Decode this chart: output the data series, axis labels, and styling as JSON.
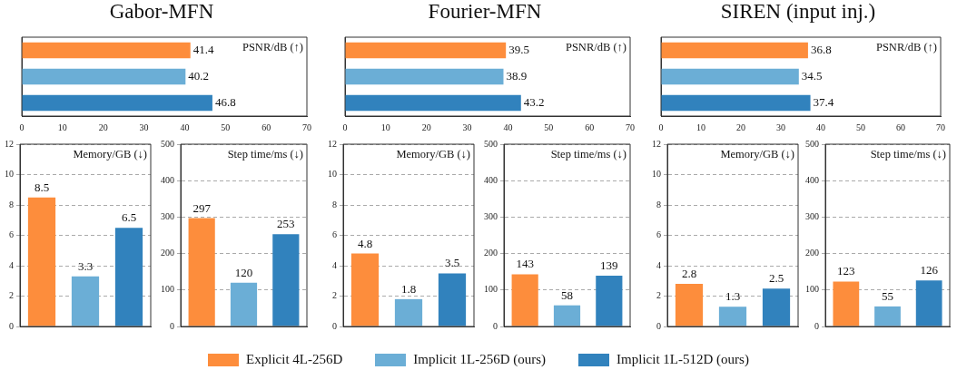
{
  "chart_data": [
    {
      "type": "bar",
      "title": "Gabor-MFN",
      "orientation": "horizontal",
      "categories": [
        null
      ],
      "series": [
        {
          "name": "Explicit 4L-256D",
          "color": "#fd8d3c",
          "values": [
            41.4
          ]
        },
        {
          "name": "Implicit 1L-256D (ours)",
          "color": "#6baed6",
          "values": [
            40.2
          ]
        },
        {
          "name": "Implicit 1L-512D (ours)",
          "color": "#3182bd",
          "values": [
            46.8
          ]
        }
      ],
      "xlim": [
        0,
        70
      ],
      "xticks": [
        0,
        10,
        20,
        30,
        40,
        50,
        60,
        70
      ],
      "annotations": [
        "PSNR/dB (↑)"
      ],
      "data_labels": true,
      "legend": "bottom"
    },
    {
      "type": "bar",
      "title": "Fourier-MFN",
      "orientation": "horizontal",
      "categories": [
        null
      ],
      "series": [
        {
          "color": "#fd8d3c",
          "values": [
            39.5
          ]
        },
        {
          "color": "#6baed6",
          "values": [
            38.9
          ]
        },
        {
          "color": "#3182bd",
          "values": [
            43.2
          ]
        }
      ],
      "xlim": [
        0,
        70
      ],
      "xticks": [
        0,
        10,
        20,
        30,
        40,
        50,
        60,
        70
      ],
      "annotations": [
        "PSNR/dB (↑)"
      ],
      "data_labels": true
    },
    {
      "type": "bar",
      "title": "SIREN (input inj.)",
      "orientation": "horizontal",
      "categories": [
        null
      ],
      "series": [
        {
          "color": "#fd8d3c",
          "values": [
            36.8
          ]
        },
        {
          "color": "#6baed6",
          "values": [
            34.5
          ]
        },
        {
          "color": "#3182bd",
          "values": [
            37.4
          ]
        }
      ],
      "xlim": [
        0,
        70
      ],
      "xticks": [
        0,
        10,
        20,
        30,
        40,
        50,
        60,
        70
      ],
      "annotations": [
        "PSNR/dB (↑)"
      ],
      "data_labels": true
    },
    {
      "type": "bar",
      "categories": [
        null
      ],
      "series": [
        {
          "color": "#fd8d3c",
          "values": [
            8.5
          ]
        },
        {
          "color": "#6baed6",
          "values": [
            3.3
          ]
        },
        {
          "color": "#3182bd",
          "values": [
            6.5
          ]
        }
      ],
      "ylim": [
        0,
        12
      ],
      "yticks": [
        0,
        2,
        4,
        6,
        8,
        10,
        12
      ],
      "grid": "y",
      "annotations": [
        "Memory/GB (↓)"
      ],
      "data_labels": true
    },
    {
      "type": "bar",
      "categories": [
        null
      ],
      "series": [
        {
          "color": "#fd8d3c",
          "values": [
            297
          ]
        },
        {
          "color": "#6baed6",
          "values": [
            120
          ]
        },
        {
          "color": "#3182bd",
          "values": [
            253
          ]
        }
      ],
      "ylim": [
        0,
        500
      ],
      "yticks": [
        0,
        100,
        200,
        300,
        400,
        500
      ],
      "grid": "y",
      "annotations": [
        "Step time/ms (↓)"
      ],
      "data_labels": true
    },
    {
      "type": "bar",
      "categories": [
        null
      ],
      "series": [
        {
          "color": "#fd8d3c",
          "values": [
            4.8
          ]
        },
        {
          "color": "#6baed6",
          "values": [
            1.8
          ]
        },
        {
          "color": "#3182bd",
          "values": [
            3.5
          ]
        }
      ],
      "ylim": [
        0,
        12
      ],
      "yticks": [
        0,
        2,
        4,
        6,
        8,
        10,
        12
      ],
      "grid": "y",
      "annotations": [
        "Memory/GB (↓)"
      ],
      "data_labels": true
    },
    {
      "type": "bar",
      "categories": [
        null
      ],
      "series": [
        {
          "color": "#fd8d3c",
          "values": [
            143
          ]
        },
        {
          "color": "#6baed6",
          "values": [
            58
          ]
        },
        {
          "color": "#3182bd",
          "values": [
            139
          ]
        }
      ],
      "ylim": [
        0,
        500
      ],
      "yticks": [
        0,
        100,
        200,
        300,
        400,
        500
      ],
      "grid": "y",
      "annotations": [
        "Step time/ms (↓)"
      ],
      "data_labels": true
    },
    {
      "type": "bar",
      "categories": [
        null
      ],
      "series": [
        {
          "color": "#fd8d3c",
          "values": [
            2.8
          ]
        },
        {
          "color": "#6baed6",
          "values": [
            1.3
          ]
        },
        {
          "color": "#3182bd",
          "values": [
            2.5
          ]
        }
      ],
      "ylim": [
        0,
        12
      ],
      "yticks": [
        0,
        2,
        4,
        6,
        8,
        10,
        12
      ],
      "grid": "y",
      "annotations": [
        "Memory/GB (↓)"
      ],
      "data_labels": true
    },
    {
      "type": "bar",
      "categories": [
        null
      ],
      "series": [
        {
          "color": "#fd8d3c",
          "values": [
            123
          ]
        },
        {
          "color": "#6baed6",
          "values": [
            55
          ]
        },
        {
          "color": "#3182bd",
          "values": [
            126
          ]
        }
      ],
      "ylim": [
        0,
        500
      ],
      "yticks": [
        0,
        100,
        200,
        300,
        400,
        500
      ],
      "grid": "y",
      "annotations": [
        "Step time/ms (↓)"
      ],
      "data_labels": true
    }
  ]
}
